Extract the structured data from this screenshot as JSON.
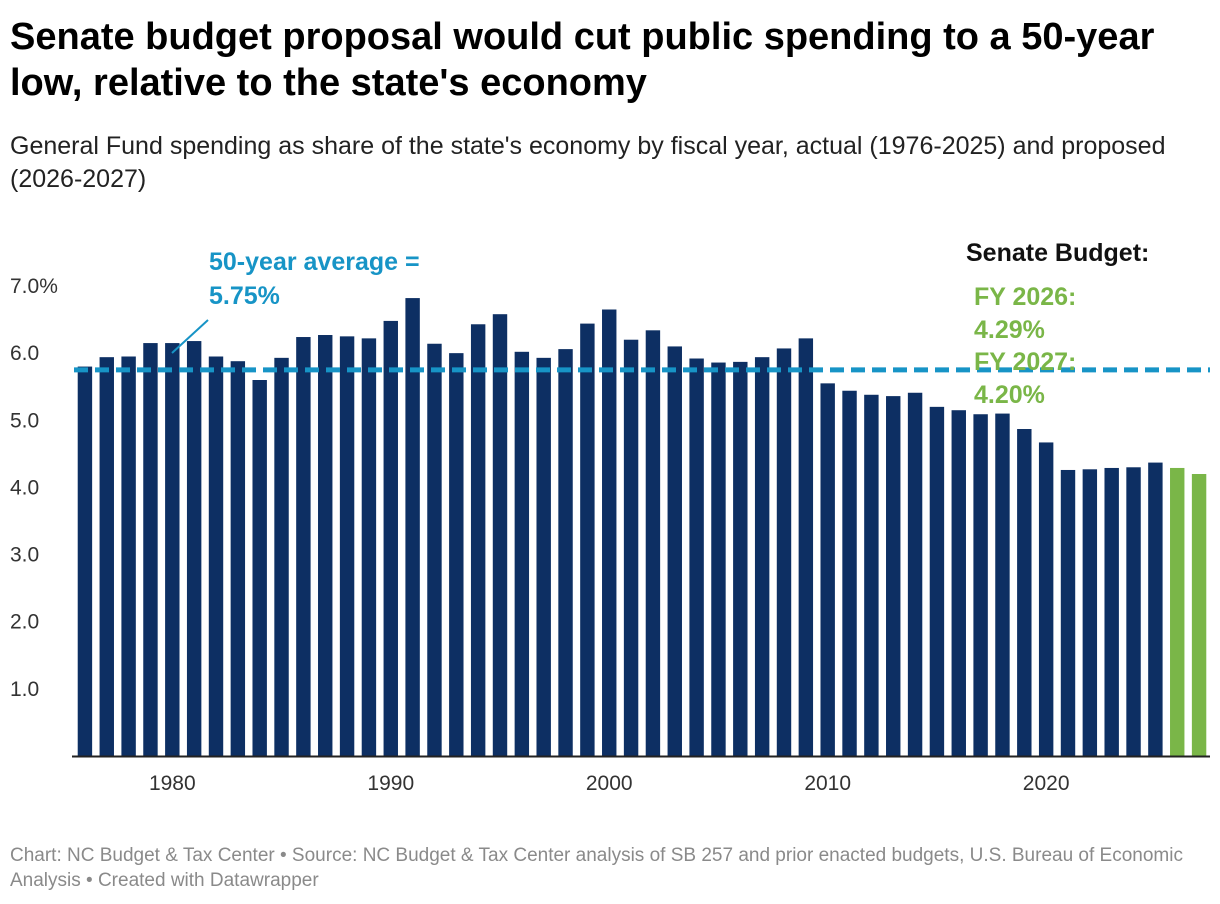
{
  "title": "Senate budget proposal would cut public spending to a 50-year low, relative to the state's economy",
  "subtitle": "General Fund spending as share of the state's economy by fiscal year, actual (1976-2025) and proposed (2026-2027)",
  "footer": "Chart: NC Budget & Tax Center • Source: NC Budget & Tax Center analysis of SB 257 and prior enacted budgets, U.S. Bureau of Economic Analysis • Created with Datawrapper",
  "colors": {
    "actual": "#0d2f63",
    "proposed": "#7ab648",
    "average": "#1794c6",
    "axis": "#222222"
  },
  "chart_data": {
    "type": "bar",
    "x": [
      1976,
      1977,
      1978,
      1979,
      1980,
      1981,
      1982,
      1983,
      1984,
      1985,
      1986,
      1987,
      1988,
      1989,
      1990,
      1991,
      1992,
      1993,
      1994,
      1995,
      1996,
      1997,
      1998,
      1999,
      2000,
      2001,
      2002,
      2003,
      2004,
      2005,
      2006,
      2007,
      2008,
      2009,
      2010,
      2011,
      2012,
      2013,
      2014,
      2015,
      2016,
      2017,
      2018,
      2019,
      2020,
      2021,
      2022,
      2023,
      2024,
      2025,
      2026,
      2027
    ],
    "series": [
      {
        "values": [
          5.8,
          5.94,
          5.95,
          6.15,
          6.15,
          6.18,
          5.95,
          5.88,
          5.6,
          5.93,
          6.24,
          6.27,
          6.25,
          6.22,
          6.48,
          6.82,
          6.14,
          6.0,
          6.43,
          6.58,
          6.02,
          5.93,
          6.06,
          6.44,
          6.65,
          6.2,
          6.34,
          6.1,
          5.92,
          5.86,
          5.87,
          5.94,
          6.07,
          6.22,
          5.55,
          5.44,
          5.38,
          5.36,
          5.41,
          5.2,
          5.15,
          5.09,
          5.1,
          4.87,
          4.67,
          4.26,
          4.27,
          4.29,
          4.3,
          4.37,
          4.29,
          4.2
        ]
      }
    ],
    "proposed_years": [
      2026,
      2027
    ],
    "y_ticks": [
      1.0,
      2.0,
      3.0,
      4.0,
      5.0,
      6.0,
      7.0
    ],
    "y_tick_labels": [
      "1.0",
      "2.0",
      "3.0",
      "4.0",
      "5.0",
      "6.0",
      "7.0%"
    ],
    "x_ticks": [
      1980,
      1990,
      2000,
      2010,
      2020
    ],
    "ylim": [
      0,
      7.0
    ],
    "xlim": [
      1975.5,
      2027.5
    ],
    "average": {
      "value": 5.75,
      "label_line1": "50-year average =",
      "label_line2": "5.75%"
    },
    "annotation": {
      "heading": "Senate Budget:",
      "fy2026_line1": "FY 2026:",
      "fy2026_line2": "4.29%",
      "fy2027_line1": "FY 2027:",
      "fy2027_line2": "4.20%"
    },
    "grid": false
  }
}
